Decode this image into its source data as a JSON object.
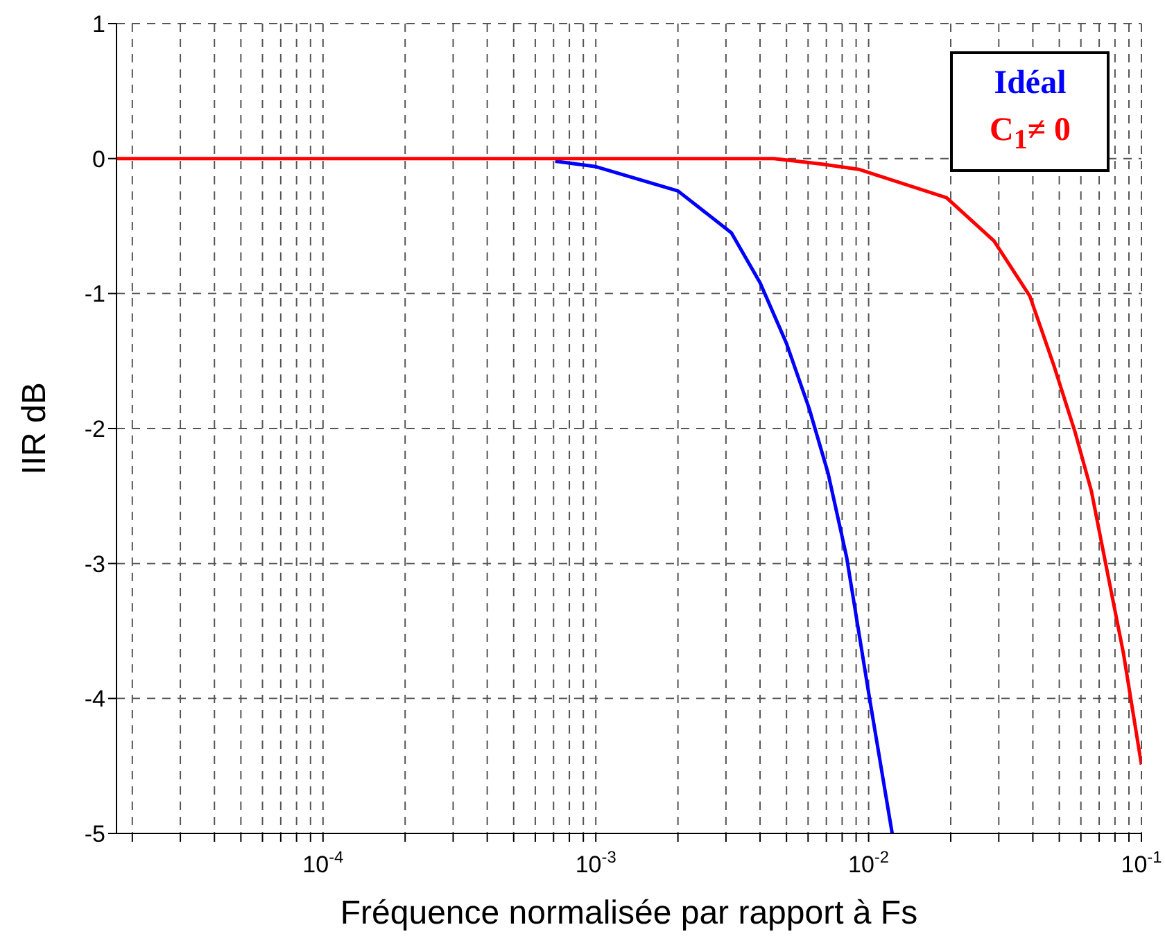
{
  "chart_data": {
    "type": "line",
    "xlabel": "Fréquence normalisée par rapport à Fs",
    "ylabel": "IIR dB",
    "log": "x",
    "xlim": [
      1.75e-05,
      0.1
    ],
    "ylim": [
      -5,
      1
    ],
    "xticks": [
      {
        "value": 2e-05,
        "label": null
      },
      {
        "value": 3e-05,
        "label": null
      },
      {
        "value": 4e-05,
        "label": null
      },
      {
        "value": 5e-05,
        "label": null
      },
      {
        "value": 6e-05,
        "label": null
      },
      {
        "value": 7e-05,
        "label": null
      },
      {
        "value": 8e-05,
        "label": null
      },
      {
        "value": 9e-05,
        "label": null
      },
      {
        "value": 0.0001,
        "label": "10$^{-4}$"
      },
      {
        "value": 0.0002,
        "label": null
      },
      {
        "value": 0.0003,
        "label": null
      },
      {
        "value": 0.0004,
        "label": null
      },
      {
        "value": 0.0005,
        "label": null
      },
      {
        "value": 0.0006,
        "label": null
      },
      {
        "value": 0.0007,
        "label": null
      },
      {
        "value": 0.0008,
        "label": null
      },
      {
        "value": 0.0009,
        "label": null
      },
      {
        "value": 0.001,
        "label": "10$^{-3}$"
      },
      {
        "value": 0.002,
        "label": null
      },
      {
        "value": 0.003,
        "label": null
      },
      {
        "value": 0.004,
        "label": null
      },
      {
        "value": 0.005,
        "label": null
      },
      {
        "value": 0.006,
        "label": null
      },
      {
        "value": 0.007,
        "label": null
      },
      {
        "value": 0.008,
        "label": null
      },
      {
        "value": 0.009,
        "label": null
      },
      {
        "value": 0.01,
        "label": "10$^{-2}$"
      },
      {
        "value": 0.02,
        "label": null
      },
      {
        "value": 0.03,
        "label": null
      },
      {
        "value": 0.04,
        "label": null
      },
      {
        "value": 0.05,
        "label": null
      },
      {
        "value": 0.06,
        "label": null
      },
      {
        "value": 0.07,
        "label": null
      },
      {
        "value": 0.08,
        "label": null
      },
      {
        "value": 0.09,
        "label": null
      },
      {
        "value": 0.1,
        "label": "10$^{-1}$"
      }
    ],
    "yticks": [
      -5,
      -4,
      -3,
      -2,
      -1,
      0,
      1
    ],
    "grid": true,
    "line_style": "solid",
    "legend": "top right",
    "series": [
      {
        "name": "Idéal",
        "color": "#0000ff",
        "x": [
          0.00071,
          0.001,
          0.002,
          0.00314,
          0.004,
          0.005,
          0.00605,
          0.0071,
          0.0083,
          0.0101,
          0.0122
        ],
        "values": [
          -0.02,
          -0.06,
          -0.24,
          -0.55,
          -0.92,
          -1.37,
          -1.85,
          -2.33,
          -2.95,
          -4.01,
          -5
        ]
      },
      {
        "name": "C$_{1}$≠ 0",
        "color": "#ff0000",
        "x": [
          1.75e-05,
          0.0001,
          0.001,
          0.0045,
          0.0067,
          0.0092,
          0.0193,
          0.0288,
          0.039,
          0.0477,
          0.057,
          0.0655,
          0.0736,
          0.086,
          0.1
        ],
        "values": [
          0,
          0,
          0,
          0,
          -0.04,
          -0.08,
          -0.29,
          -0.61,
          -1.02,
          -1.53,
          -2.02,
          -2.46,
          -2.98,
          -3.67,
          -4.49
        ]
      }
    ]
  }
}
